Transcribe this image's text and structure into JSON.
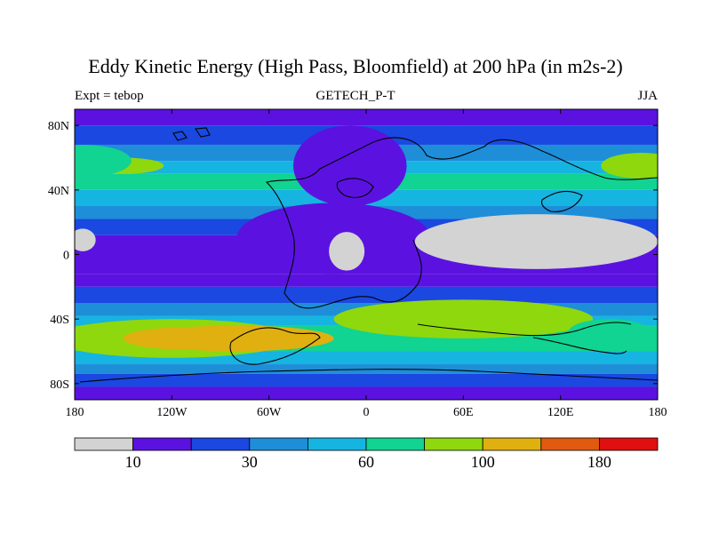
{
  "chart_data": {
    "type": "heatmap",
    "title": "Eddy Kinetic Energy (High Pass, Bloomfield) at 200 hPa (in m2s-2)",
    "left_label": "Expt = tebop",
    "center_label": "GETECH_P-T",
    "right_label": "JJA",
    "x_ticks": [
      "180",
      "120W",
      "60W",
      "0",
      "60E",
      "120E",
      "180"
    ],
    "x_tick_values": [
      -180,
      -120,
      -60,
      0,
      60,
      120,
      180
    ],
    "y_ticks": [
      "80N",
      "40N",
      "0",
      "40S",
      "80S"
    ],
    "y_tick_values": [
      80,
      40,
      0,
      -40,
      -80
    ],
    "xlim": [
      -180,
      180
    ],
    "ylim": [
      -90,
      90
    ],
    "colorbar": {
      "colors": [
        "#d3d3d3",
        "#5b12e0",
        "#1a48e0",
        "#1e8ed8",
        "#16b4e0",
        "#11d392",
        "#8ed80d",
        "#e0b010",
        "#e05a10",
        "#e01010"
      ],
      "label_values": [
        "10",
        "30",
        "60",
        "100",
        "180"
      ],
      "label_bin_boundaries": [
        1,
        3,
        5,
        7,
        9
      ]
    },
    "fields": {
      "bands": [
        {
          "lat": 90,
          "level": 1
        },
        {
          "lat": 80,
          "level": 2
        },
        {
          "lat": 68,
          "level": 3
        },
        {
          "lat": 58,
          "level": 4
        },
        {
          "lat": 50,
          "level": 5
        },
        {
          "lat": 40,
          "level": 4
        },
        {
          "lat": 30,
          "level": 3
        },
        {
          "lat": 22,
          "level": 2
        },
        {
          "lat": 12,
          "level": 1
        },
        {
          "lat": -12,
          "level": 1
        },
        {
          "lat": -20,
          "level": 2
        },
        {
          "lat": -30,
          "level": 3
        },
        {
          "lat": -38,
          "level": 4
        },
        {
          "lat": -44,
          "level": 5
        },
        {
          "lat": -60,
          "level": 4
        },
        {
          "lat": -68,
          "level": 3
        },
        {
          "lat": -74,
          "level": 2
        },
        {
          "lat": -82,
          "level": 1
        },
        {
          "lat": -90,
          "level": 1
        }
      ],
      "hotspots": [
        {
          "lon": -150,
          "lat": 55,
          "rx": 25,
          "ry": 5,
          "level": 6
        },
        {
          "lon": -175,
          "lat": 58,
          "rx": 30,
          "ry": 10,
          "level": 5
        },
        {
          "lon": 170,
          "lat": 55,
          "rx": 25,
          "ry": 8,
          "level": 6
        },
        {
          "lon": -120,
          "lat": -52,
          "rx": 75,
          "ry": 12,
          "level": 6
        },
        {
          "lon": -80,
          "lat": -52,
          "rx": 60,
          "ry": 8,
          "level": 7
        },
        {
          "lon": -110,
          "lat": -52,
          "rx": 40,
          "ry": 7,
          "level": 7
        },
        {
          "lon": 85,
          "lat": -38,
          "rx": 35,
          "ry": 7,
          "level": 7
        },
        {
          "lon": 60,
          "lat": -40,
          "rx": 80,
          "ry": 12,
          "level": 6
        },
        {
          "lon": 150,
          "lat": -48,
          "rx": 25,
          "ry": 8,
          "level": 5
        }
      ],
      "low_regions": [
        {
          "lon": 105,
          "lat": 8,
          "rx": 75,
          "ry": 17,
          "level": 0
        },
        {
          "lon": -175,
          "lat": 9,
          "rx": 8,
          "ry": 7,
          "level": 0
        },
        {
          "lon": -12,
          "lat": 2,
          "rx": 11,
          "ry": 12,
          "level": 0
        },
        {
          "lon": -20,
          "lat": 10,
          "rx": 60,
          "ry": 22,
          "level": 1
        },
        {
          "lon": -10,
          "lat": 55,
          "rx": 35,
          "ry": 25,
          "level": 1
        }
      ]
    }
  }
}
